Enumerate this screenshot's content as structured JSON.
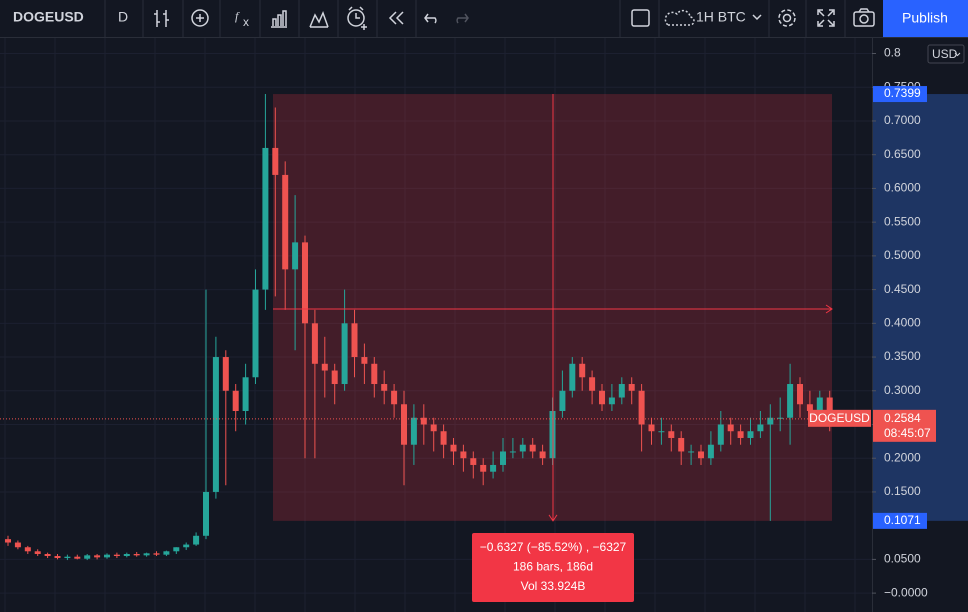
{
  "toolbar": {
    "symbol": "DOGEUSD",
    "interval": "D",
    "compare": "1H BTC",
    "publish": "Publish"
  },
  "price_axis": {
    "currency": "USD"
  },
  "chart_data": {
    "type": "candlestick",
    "name": "DOGEUSD",
    "up_color": "#26a69a",
    "down_color": "#ef5350",
    "open": [
      0.08,
      0.075,
      0.068,
      0.062,
      0.058,
      0.055,
      0.052,
      0.054,
      0.051,
      0.056,
      0.053,
      0.057,
      0.055,
      0.058,
      0.056,
      0.059,
      0.057,
      0.062,
      0.068,
      0.072,
      0.085,
      0.15,
      0.35,
      0.3,
      0.27,
      0.32,
      0.45,
      0.66,
      0.62,
      0.48,
      0.52,
      0.4,
      0.34,
      0.33,
      0.31,
      0.4,
      0.35,
      0.34,
      0.31,
      0.3,
      0.28,
      0.22,
      0.26,
      0.25,
      0.24,
      0.22,
      0.21,
      0.2,
      0.19,
      0.18,
      0.19,
      0.21,
      0.21,
      0.22,
      0.21,
      0.2,
      0.27,
      0.3,
      0.34,
      0.32,
      0.3,
      0.28,
      0.29,
      0.31,
      0.3,
      0.25,
      0.24,
      0.24,
      0.23,
      0.21,
      0.21,
      0.2,
      0.22,
      0.25,
      0.24,
      0.23,
      0.24,
      0.25,
      0.26,
      0.26,
      0.31,
      0.28,
      0.27,
      0.29
    ],
    "high": [
      0.085,
      0.078,
      0.07,
      0.065,
      0.06,
      0.058,
      0.057,
      0.057,
      0.058,
      0.058,
      0.059,
      0.06,
      0.06,
      0.061,
      0.06,
      0.062,
      0.063,
      0.068,
      0.075,
      0.09,
      0.45,
      0.38,
      0.36,
      0.31,
      0.34,
      0.48,
      0.7399,
      0.72,
      0.64,
      0.59,
      0.53,
      0.42,
      0.38,
      0.34,
      0.45,
      0.42,
      0.37,
      0.35,
      0.33,
      0.31,
      0.3,
      0.28,
      0.28,
      0.26,
      0.25,
      0.23,
      0.22,
      0.21,
      0.2,
      0.21,
      0.23,
      0.23,
      0.23,
      0.23,
      0.22,
      0.29,
      0.33,
      0.35,
      0.35,
      0.33,
      0.31,
      0.31,
      0.32,
      0.32,
      0.31,
      0.26,
      0.26,
      0.25,
      0.24,
      0.22,
      0.22,
      0.24,
      0.27,
      0.26,
      0.25,
      0.26,
      0.27,
      0.28,
      0.29,
      0.34,
      0.32,
      0.3,
      0.3,
      0.3
    ],
    "low": [
      0.07,
      0.065,
      0.058,
      0.055,
      0.052,
      0.05,
      0.049,
      0.05,
      0.049,
      0.05,
      0.051,
      0.052,
      0.053,
      0.054,
      0.054,
      0.055,
      0.055,
      0.058,
      0.064,
      0.07,
      0.08,
      0.14,
      0.16,
      0.24,
      0.25,
      0.31,
      0.42,
      0.44,
      0.42,
      0.36,
      0.2,
      0.2,
      0.29,
      0.28,
      0.3,
      0.32,
      0.31,
      0.29,
      0.28,
      0.26,
      0.16,
      0.19,
      0.22,
      0.21,
      0.2,
      0.19,
      0.18,
      0.17,
      0.16,
      0.17,
      0.18,
      0.2,
      0.2,
      0.2,
      0.19,
      0.19,
      0.26,
      0.29,
      0.3,
      0.28,
      0.27,
      0.27,
      0.28,
      0.28,
      0.21,
      0.22,
      0.22,
      0.21,
      0.19,
      0.19,
      0.19,
      0.19,
      0.21,
      0.22,
      0.22,
      0.22,
      0.23,
      0.1071,
      0.24,
      0.22,
      0.26,
      0.25,
      0.25,
      0.24
    ],
    "close": [
      0.075,
      0.068,
      0.062,
      0.058,
      0.055,
      0.052,
      0.054,
      0.051,
      0.056,
      0.053,
      0.057,
      0.055,
      0.058,
      0.056,
      0.059,
      0.057,
      0.062,
      0.068,
      0.072,
      0.085,
      0.15,
      0.35,
      0.3,
      0.27,
      0.32,
      0.45,
      0.66,
      0.62,
      0.48,
      0.52,
      0.4,
      0.34,
      0.33,
      0.31,
      0.4,
      0.35,
      0.34,
      0.31,
      0.3,
      0.28,
      0.22,
      0.26,
      0.25,
      0.24,
      0.22,
      0.21,
      0.2,
      0.19,
      0.18,
      0.19,
      0.21,
      0.21,
      0.22,
      0.21,
      0.2,
      0.27,
      0.3,
      0.34,
      0.32,
      0.3,
      0.28,
      0.29,
      0.31,
      0.3,
      0.25,
      0.24,
      0.24,
      0.23,
      0.21,
      0.21,
      0.2,
      0.22,
      0.25,
      0.24,
      0.23,
      0.24,
      0.25,
      0.26,
      0.26,
      0.31,
      0.28,
      0.27,
      0.29,
      0.2584
    ],
    "ylim": [
      -0.028,
      0.823
    ],
    "yticks": [
      0.8,
      {
        "value": 0.75,
        "label": "0.7500"
      },
      {
        "value": 0.7,
        "label": "0.7000"
      },
      {
        "value": 0.65,
        "label": "0.6500"
      },
      {
        "value": 0.6,
        "label": "0.6000"
      },
      {
        "value": 0.55,
        "label": "0.5500"
      },
      {
        "value": 0.5,
        "label": "0.5000"
      },
      {
        "value": 0.45,
        "label": "0.4500"
      },
      {
        "value": 0.4,
        "label": "0.4000"
      },
      {
        "value": 0.35,
        "label": "0.3500"
      },
      {
        "value": 0.3,
        "label": "0.3000"
      },
      {
        "value": 0.25,
        "label": "0.2500"
      },
      {
        "value": 0.2,
        "label": "0.2000"
      },
      {
        "value": 0.15,
        "label": "0.1500"
      },
      {
        "value": 0.05,
        "label": "0.0500"
      },
      {
        "value": 0,
        "label": "−0.0000"
      }
    ],
    "grid": true,
    "last_price": 0.2584,
    "countdown": "08:45:07",
    "measure": {
      "high": 0.7399,
      "low": 0.1071,
      "lines": [
        "−0.6327 (−85.52%) , −6327",
        "186 bars, 186d",
        "Vol 33.924B"
      ]
    }
  }
}
